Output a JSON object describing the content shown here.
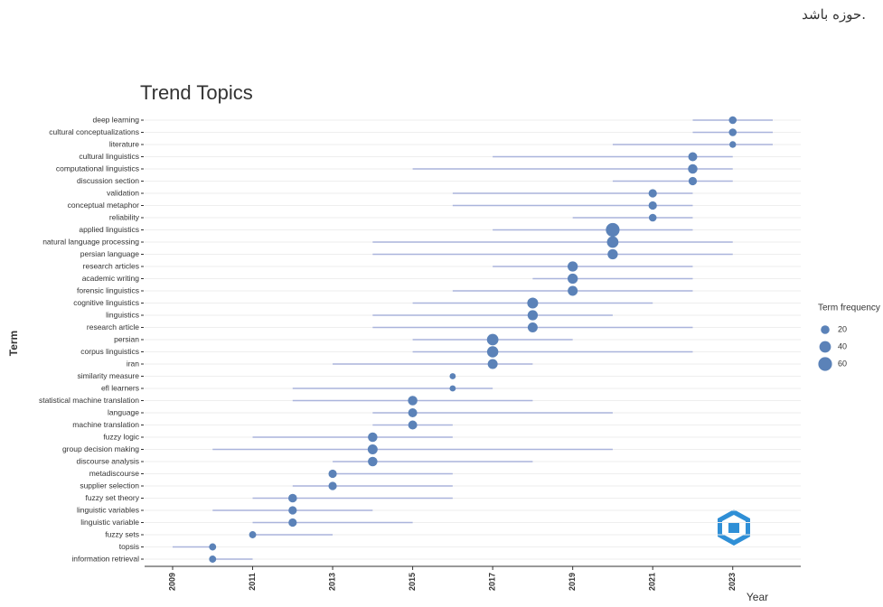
{
  "header_text": "حوزه باشد.",
  "chart_data": {
    "type": "range-dot",
    "title": "Trend Topics",
    "x_label": "Year",
    "y_label": "Term",
    "categories": [
      "deep learning",
      "cultural conceptualizations",
      "literature",
      "cultural linguistics",
      "computational linguistics",
      "discussion section",
      "validation",
      "conceptual metaphor",
      "reliability",
      "applied linguistics",
      "natural language processing",
      "persian language",
      "research articles",
      "academic writing",
      "forensic linguistics",
      "cognitive linguistics",
      "linguistics",
      "research article",
      "persian",
      "corpus linguistics",
      "iran",
      "similarity measure",
      "efl learners",
      "statistical machine translation",
      "language",
      "machine translation",
      "fuzzy logic",
      "group decision making",
      "discourse analysis",
      "metadiscourse",
      "supplier selection",
      "fuzzy set theory",
      "linguistic variables",
      "linguistic variable",
      "fuzzy sets",
      "topsis",
      "information retrieval"
    ],
    "values": [
      2023,
      2023,
      2023,
      2022,
      2022,
      2022,
      2021,
      2021,
      2021,
      2020,
      2020,
      2020,
      2019,
      2019,
      2019,
      2018,
      2018,
      2018,
      2017,
      2017,
      2017,
      2016,
      2016,
      2015,
      2015,
      2015,
      2014,
      2014,
      2014,
      2013,
      2013,
      2012,
      2012,
      2012,
      2011,
      2010,
      2010
    ],
    "lower": [
      2022,
      2022,
      2020,
      2017,
      2015,
      2020,
      2016,
      2016,
      2019,
      2017,
      2014,
      2014,
      2017,
      2018,
      2016,
      2015,
      2014,
      2014,
      2015,
      2015,
      2013,
      2016,
      2012,
      2012,
      2014,
      2014,
      2011,
      2010,
      2013,
      2013,
      2012,
      2011,
      2010,
      2011,
      2011,
      2009,
      2010
    ],
    "upper": [
      2024,
      2024,
      2024,
      2023,
      2023,
      2023,
      2022,
      2022,
      2022,
      2022,
      2023,
      2023,
      2022,
      2022,
      2022,
      2021,
      2020,
      2022,
      2019,
      2022,
      2018,
      2016,
      2017,
      2018,
      2020,
      2016,
      2016,
      2020,
      2018,
      2016,
      2016,
      2016,
      2014,
      2015,
      2013,
      2010,
      2011
    ],
    "sizes": [
      15,
      15,
      10,
      22,
      25,
      18,
      18,
      18,
      15,
      60,
      40,
      30,
      30,
      30,
      28,
      35,
      30,
      28,
      40,
      38,
      28,
      8,
      8,
      25,
      22,
      22,
      25,
      28,
      25,
      18,
      18,
      20,
      18,
      18,
      12,
      12,
      12
    ],
    "size_legend_title": "Term frequency",
    "size_legend": [
      20,
      40,
      60
    ],
    "color": "#5b82b8",
    "line_color": "#aab4dc",
    "xlim": [
      2008.3,
      2024.7
    ],
    "xticks": [
      2009,
      2011,
      2013,
      2015,
      2017,
      2019,
      2021,
      2023
    ],
    "grid": true
  }
}
